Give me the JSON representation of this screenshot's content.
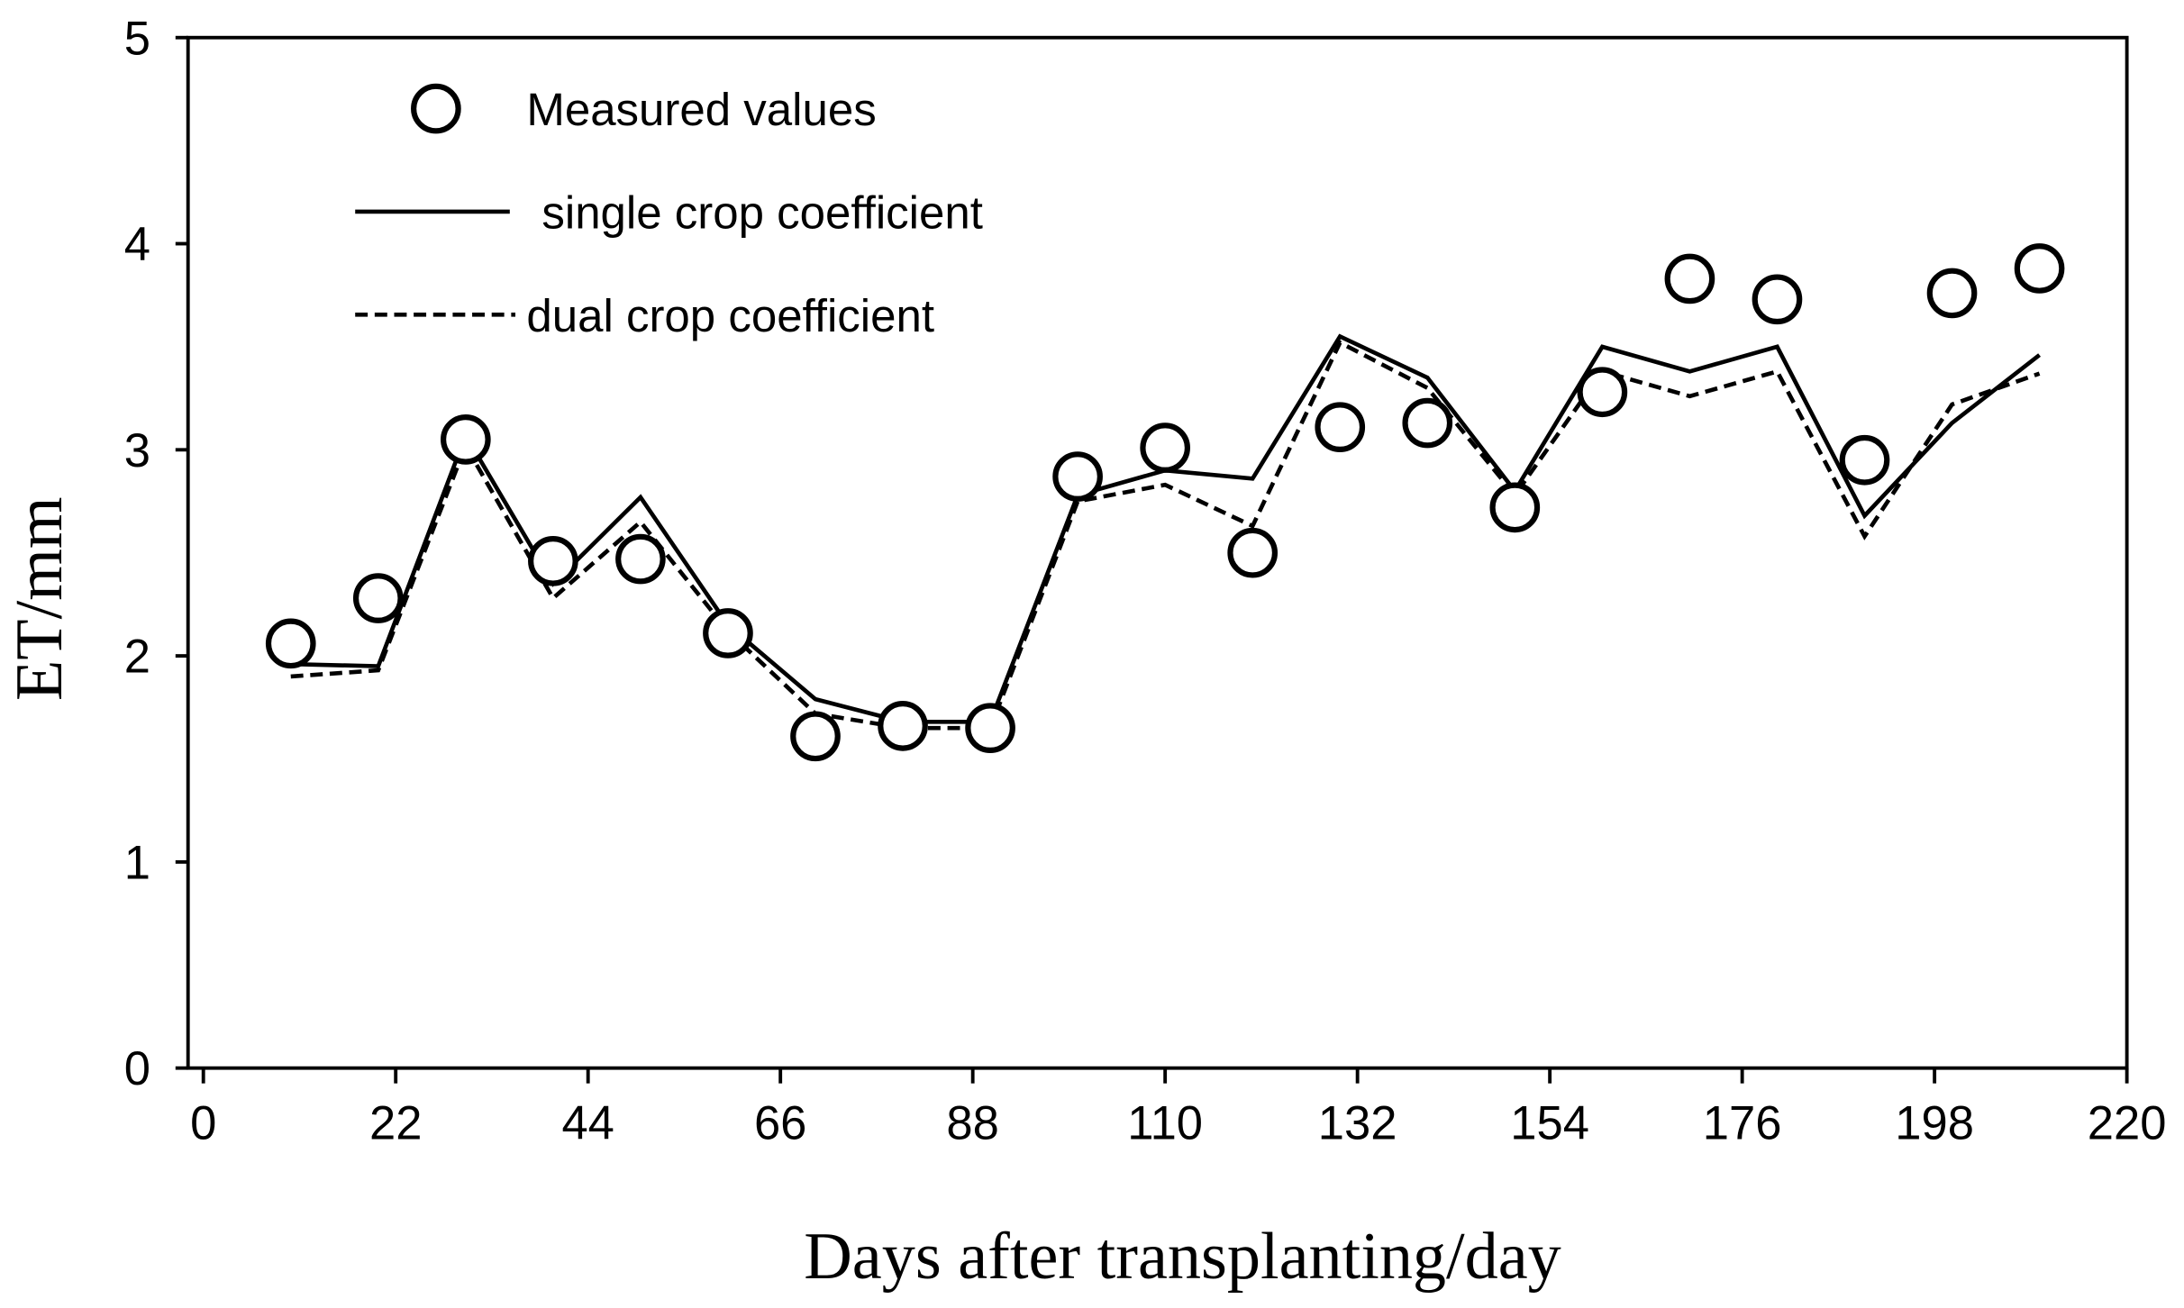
{
  "colors": {
    "ink": "#000000",
    "marker_fill": "#ffffff",
    "background": "#ffffff"
  },
  "chart_data": {
    "type": "line",
    "title": "",
    "xlabel": "Days after transplanting/day",
    "ylabel": "ET/mm",
    "xlim": [
      0,
      220
    ],
    "ylim": [
      0,
      5
    ],
    "x_ticks": [
      0,
      22,
      44,
      66,
      88,
      110,
      132,
      154,
      176,
      198,
      220
    ],
    "y_ticks": [
      0,
      1,
      2,
      3,
      4,
      5
    ],
    "grid": false,
    "legend_position": "top-left",
    "series": [
      {
        "name": "Measured values",
        "x": [
          10,
          20,
          30,
          40,
          50,
          60,
          70,
          80,
          90,
          100,
          110,
          120,
          130,
          140,
          150,
          160,
          170,
          180,
          190,
          200,
          210
        ],
        "values": [
          2.06,
          2.28,
          3.05,
          2.46,
          2.47,
          2.11,
          1.61,
          1.66,
          1.65,
          2.87,
          3.01,
          2.5,
          3.11,
          3.13,
          2.72,
          3.28,
          3.83,
          3.73,
          2.95,
          3.76,
          3.88
        ]
      },
      {
        "name": "single crop coefficient",
        "x": [
          10,
          20,
          30,
          40,
          50,
          60,
          70,
          80,
          90,
          100,
          110,
          120,
          130,
          140,
          150,
          160,
          170,
          180,
          190,
          200,
          210
        ],
        "values": [
          1.96,
          1.95,
          3.07,
          2.35,
          2.77,
          2.15,
          1.79,
          1.68,
          1.68,
          2.78,
          2.9,
          2.86,
          3.55,
          3.35,
          2.8,
          3.5,
          3.38,
          3.5,
          2.68,
          3.13,
          3.46
        ]
      },
      {
        "name": "dual crop coefficient",
        "x": [
          10,
          20,
          30,
          40,
          50,
          60,
          70,
          80,
          90,
          100,
          110,
          120,
          130,
          140,
          150,
          160,
          170,
          180,
          190,
          200,
          210
        ],
        "values": [
          1.9,
          1.93,
          3.02,
          2.28,
          2.65,
          2.12,
          1.72,
          1.65,
          1.65,
          2.75,
          2.83,
          2.63,
          3.52,
          3.3,
          2.78,
          3.38,
          3.26,
          3.38,
          2.58,
          3.22,
          3.37
        ]
      }
    ]
  }
}
